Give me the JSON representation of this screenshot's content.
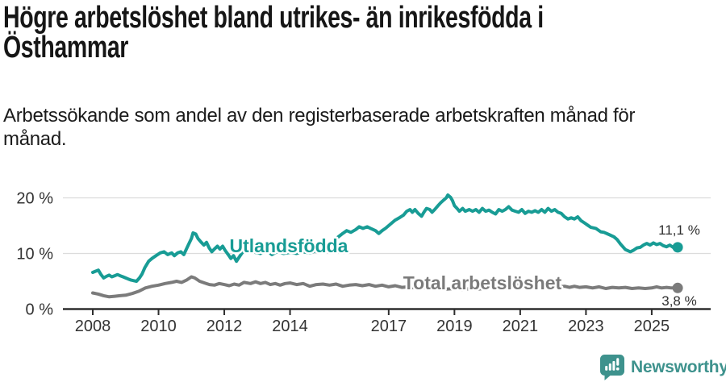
{
  "title": "Högre arbetslöshet bland utrikes- än inrikesfödda i Östhammar",
  "title_lines": [
    "Högre arbetslöshet bland utrikes- än inrikesfödda i",
    "Östhammar"
  ],
  "subtitle": "Arbetssökande som andel av den registerbaserade arbetskraften månad för månad.",
  "subtitle_lines": [
    "Arbetssökande som andel av den registerbaserade arbetskraften månad för",
    "månad."
  ],
  "branding": {
    "name": "Newsworthy",
    "color": "#3E928D"
  },
  "colors": {
    "grid": "#dcdcdc",
    "axis": "#2e2e2e",
    "tick_text": "#333333",
    "value_label_text": "#2f2f2f"
  },
  "chart_data": {
    "type": "line",
    "title": "Högre arbetslöshet bland utrikes- än inrikesfödda i Östhammar",
    "subtitle": "Arbetssökande som andel av den registerbaserade arbetskraften månad för månad.",
    "xlabel": "",
    "ylabel": "",
    "x_unit": "year (monthly values)",
    "xlim": [
      2007.3,
      2026.8
    ],
    "ylim": [
      0,
      22
    ],
    "grid": "horizontal",
    "legend": "inline-labels",
    "yticks": [
      {
        "value": 0,
        "label": "0 %"
      },
      {
        "value": 10,
        "label": "10 %"
      },
      {
        "value": 20,
        "label": "20 %"
      }
    ],
    "xticks": [
      {
        "value": 2008,
        "label": "2008"
      },
      {
        "value": 2010,
        "label": "2010"
      },
      {
        "value": 2012,
        "label": "2012"
      },
      {
        "value": 2014,
        "label": "2014"
      },
      {
        "value": 2017,
        "label": "2017"
      },
      {
        "value": 2019,
        "label": "2019"
      },
      {
        "value": 2021,
        "label": "2021"
      },
      {
        "value": 2023,
        "label": "2023"
      },
      {
        "value": 2025,
        "label": "2025"
      }
    ],
    "series": [
      {
        "name": "Utlandsfödda",
        "color": "#189C95",
        "end_label": "11,1 %",
        "end_value": 11.1,
        "points": [
          [
            2008.0,
            6.6
          ],
          [
            2008.08,
            6.8
          ],
          [
            2008.17,
            7.0
          ],
          [
            2008.25,
            6.2
          ],
          [
            2008.33,
            5.6
          ],
          [
            2008.42,
            5.9
          ],
          [
            2008.5,
            6.1
          ],
          [
            2008.58,
            5.8
          ],
          [
            2008.67,
            6.0
          ],
          [
            2008.75,
            6.2
          ],
          [
            2008.83,
            6.0
          ],
          [
            2008.92,
            5.8
          ],
          [
            2009.0,
            5.6
          ],
          [
            2009.08,
            5.4
          ],
          [
            2009.17,
            5.2
          ],
          [
            2009.25,
            5.1
          ],
          [
            2009.33,
            5.0
          ],
          [
            2009.42,
            5.6
          ],
          [
            2009.5,
            6.3
          ],
          [
            2009.58,
            7.4
          ],
          [
            2009.7,
            8.6
          ],
          [
            2009.8,
            9.1
          ],
          [
            2009.92,
            9.6
          ],
          [
            2010.05,
            10.1
          ],
          [
            2010.17,
            10.3
          ],
          [
            2010.28,
            9.8
          ],
          [
            2010.4,
            10.1
          ],
          [
            2010.48,
            9.6
          ],
          [
            2010.58,
            10.1
          ],
          [
            2010.68,
            10.3
          ],
          [
            2010.77,
            9.8
          ],
          [
            2010.88,
            11.2
          ],
          [
            2011.0,
            12.7
          ],
          [
            2011.05,
            13.7
          ],
          [
            2011.13,
            13.5
          ],
          [
            2011.2,
            12.7
          ],
          [
            2011.3,
            12.0
          ],
          [
            2011.38,
            11.5
          ],
          [
            2011.46,
            12.0
          ],
          [
            2011.54,
            11.0
          ],
          [
            2011.62,
            10.3
          ],
          [
            2011.7,
            10.8
          ],
          [
            2011.79,
            11.3
          ],
          [
            2011.87,
            10.8
          ],
          [
            2011.95,
            11.3
          ],
          [
            2012.03,
            10.5
          ],
          [
            2012.12,
            9.8
          ],
          [
            2012.2,
            9.1
          ],
          [
            2012.28,
            9.6
          ],
          [
            2012.37,
            8.6
          ],
          [
            2012.45,
            9.3
          ],
          [
            2012.54,
            10.1
          ],
          [
            2012.62,
            10.5
          ],
          [
            2012.7,
            10.8
          ],
          [
            2012.8,
            10.4
          ],
          [
            2012.93,
            10.2
          ],
          [
            2013.1,
            10.0
          ],
          [
            2013.3,
            10.5
          ],
          [
            2013.45,
            9.8
          ],
          [
            2013.6,
            10.3
          ],
          [
            2013.8,
            10.0
          ],
          [
            2014.0,
            10.2
          ],
          [
            2014.2,
            10.0
          ],
          [
            2014.4,
            10.3
          ],
          [
            2014.6,
            10.1
          ],
          [
            2014.8,
            10.5
          ],
          [
            2015.0,
            10.9
          ],
          [
            2015.15,
            11.4
          ],
          [
            2015.3,
            12.0
          ],
          [
            2015.45,
            12.9
          ],
          [
            2015.6,
            13.6
          ],
          [
            2015.72,
            14.1
          ],
          [
            2015.85,
            13.8
          ],
          [
            2016.0,
            14.3
          ],
          [
            2016.1,
            14.8
          ],
          [
            2016.22,
            14.5
          ],
          [
            2016.35,
            14.8
          ],
          [
            2016.45,
            14.5
          ],
          [
            2016.6,
            14.1
          ],
          [
            2016.7,
            13.6
          ],
          [
            2016.8,
            14.1
          ],
          [
            2016.9,
            14.5
          ],
          [
            2017.0,
            15.0
          ],
          [
            2017.1,
            15.5
          ],
          [
            2017.2,
            16.0
          ],
          [
            2017.35,
            16.5
          ],
          [
            2017.45,
            16.9
          ],
          [
            2017.55,
            17.6
          ],
          [
            2017.65,
            17.9
          ],
          [
            2017.72,
            17.4
          ],
          [
            2017.8,
            17.9
          ],
          [
            2017.9,
            17.2
          ],
          [
            2018.0,
            16.7
          ],
          [
            2018.07,
            17.4
          ],
          [
            2018.15,
            18.1
          ],
          [
            2018.25,
            17.9
          ],
          [
            2018.32,
            17.4
          ],
          [
            2018.4,
            17.9
          ],
          [
            2018.5,
            18.6
          ],
          [
            2018.58,
            19.1
          ],
          [
            2018.67,
            19.6
          ],
          [
            2018.75,
            20.0
          ],
          [
            2018.8,
            20.5
          ],
          [
            2018.88,
            20.1
          ],
          [
            2018.94,
            19.5
          ],
          [
            2019.0,
            18.6
          ],
          [
            2019.08,
            18.1
          ],
          [
            2019.15,
            17.6
          ],
          [
            2019.25,
            18.1
          ],
          [
            2019.33,
            17.6
          ],
          [
            2019.45,
            17.9
          ],
          [
            2019.55,
            17.6
          ],
          [
            2019.65,
            17.9
          ],
          [
            2019.75,
            17.4
          ],
          [
            2019.85,
            18.1
          ],
          [
            2019.95,
            17.6
          ],
          [
            2020.05,
            17.8
          ],
          [
            2020.15,
            17.4
          ],
          [
            2020.25,
            17.1
          ],
          [
            2020.35,
            17.9
          ],
          [
            2020.45,
            17.6
          ],
          [
            2020.55,
            17.9
          ],
          [
            2020.65,
            18.4
          ],
          [
            2020.75,
            17.8
          ],
          [
            2020.85,
            17.6
          ],
          [
            2020.95,
            17.4
          ],
          [
            2021.05,
            17.9
          ],
          [
            2021.15,
            17.2
          ],
          [
            2021.25,
            17.6
          ],
          [
            2021.35,
            17.4
          ],
          [
            2021.45,
            17.7
          ],
          [
            2021.55,
            17.4
          ],
          [
            2021.65,
            17.9
          ],
          [
            2021.75,
            17.4
          ],
          [
            2021.85,
            18.1
          ],
          [
            2021.95,
            17.6
          ],
          [
            2022.05,
            17.9
          ],
          [
            2022.15,
            17.4
          ],
          [
            2022.25,
            17.2
          ],
          [
            2022.35,
            16.6
          ],
          [
            2022.45,
            16.2
          ],
          [
            2022.55,
            16.4
          ],
          [
            2022.65,
            16.2
          ],
          [
            2022.75,
            16.6
          ],
          [
            2022.85,
            15.9
          ],
          [
            2022.95,
            15.5
          ],
          [
            2023.05,
            15.1
          ],
          [
            2023.15,
            14.7
          ],
          [
            2023.3,
            14.5
          ],
          [
            2023.45,
            13.9
          ],
          [
            2023.55,
            13.8
          ],
          [
            2023.7,
            13.4
          ],
          [
            2023.85,
            13.0
          ],
          [
            2023.95,
            12.5
          ],
          [
            2024.05,
            11.7
          ],
          [
            2024.2,
            10.7
          ],
          [
            2024.35,
            10.3
          ],
          [
            2024.45,
            10.6
          ],
          [
            2024.55,
            11.0
          ],
          [
            2024.65,
            11.1
          ],
          [
            2024.75,
            11.5
          ],
          [
            2024.85,
            11.8
          ],
          [
            2024.95,
            11.5
          ],
          [
            2025.05,
            11.9
          ],
          [
            2025.15,
            11.6
          ],
          [
            2025.25,
            11.8
          ],
          [
            2025.35,
            11.4
          ],
          [
            2025.45,
            11.2
          ],
          [
            2025.55,
            11.5
          ],
          [
            2025.65,
            11.1
          ],
          [
            2025.72,
            10.9
          ],
          [
            2025.79,
            11.1
          ]
        ]
      },
      {
        "name": "Total arbetslöshet",
        "color": "#7B7B7B",
        "end_label": "3,8 %",
        "end_value": 3.8,
        "points": [
          [
            2008.0,
            2.9
          ],
          [
            2008.17,
            2.7
          ],
          [
            2008.33,
            2.4
          ],
          [
            2008.5,
            2.2
          ],
          [
            2008.67,
            2.3
          ],
          [
            2008.83,
            2.4
          ],
          [
            2009.0,
            2.5
          ],
          [
            2009.2,
            2.8
          ],
          [
            2009.4,
            3.2
          ],
          [
            2009.6,
            3.8
          ],
          [
            2009.8,
            4.1
          ],
          [
            2010.0,
            4.3
          ],
          [
            2010.2,
            4.6
          ],
          [
            2010.4,
            4.8
          ],
          [
            2010.55,
            5.0
          ],
          [
            2010.7,
            4.8
          ],
          [
            2010.85,
            5.2
          ],
          [
            2011.0,
            5.8
          ],
          [
            2011.1,
            5.6
          ],
          [
            2011.25,
            5.0
          ],
          [
            2011.4,
            4.7
          ],
          [
            2011.55,
            4.4
          ],
          [
            2011.7,
            4.3
          ],
          [
            2011.85,
            4.6
          ],
          [
            2012.0,
            4.4
          ],
          [
            2012.15,
            4.2
          ],
          [
            2012.3,
            4.5
          ],
          [
            2012.45,
            4.3
          ],
          [
            2012.6,
            4.8
          ],
          [
            2012.8,
            4.6
          ],
          [
            2012.95,
            4.9
          ],
          [
            2013.1,
            4.6
          ],
          [
            2013.25,
            4.8
          ],
          [
            2013.4,
            4.4
          ],
          [
            2013.55,
            4.6
          ],
          [
            2013.7,
            4.3
          ],
          [
            2013.85,
            4.6
          ],
          [
            2014.0,
            4.7
          ],
          [
            2014.2,
            4.4
          ],
          [
            2014.4,
            4.6
          ],
          [
            2014.6,
            4.1
          ],
          [
            2014.8,
            4.4
          ],
          [
            2015.0,
            4.5
          ],
          [
            2015.2,
            4.3
          ],
          [
            2015.4,
            4.5
          ],
          [
            2015.6,
            4.1
          ],
          [
            2015.8,
            4.3
          ],
          [
            2016.0,
            4.4
          ],
          [
            2016.2,
            4.2
          ],
          [
            2016.4,
            4.4
          ],
          [
            2016.6,
            4.1
          ],
          [
            2016.8,
            4.3
          ],
          [
            2017.0,
            4.0
          ],
          [
            2017.2,
            4.2
          ],
          [
            2017.4,
            3.9
          ],
          [
            2017.6,
            4.0
          ],
          [
            2017.8,
            3.8
          ],
          [
            2018.0,
            3.9
          ],
          [
            2018.25,
            3.7
          ],
          [
            2018.5,
            3.8
          ],
          [
            2018.75,
            3.6
          ],
          [
            2019.0,
            3.7
          ],
          [
            2019.25,
            3.5
          ],
          [
            2019.5,
            3.7
          ],
          [
            2019.75,
            3.6
          ],
          [
            2020.0,
            3.8
          ],
          [
            2020.2,
            4.4
          ],
          [
            2020.4,
            4.6
          ],
          [
            2020.6,
            4.5
          ],
          [
            2020.8,
            4.4
          ],
          [
            2021.0,
            4.3
          ],
          [
            2021.25,
            4.2
          ],
          [
            2021.5,
            4.1
          ],
          [
            2021.75,
            4.2
          ],
          [
            2022.0,
            4.1
          ],
          [
            2022.2,
            4.0
          ],
          [
            2022.35,
            4.1
          ],
          [
            2022.5,
            3.9
          ],
          [
            2022.65,
            4.1
          ],
          [
            2022.8,
            3.9
          ],
          [
            2023.0,
            4.0
          ],
          [
            2023.2,
            3.8
          ],
          [
            2023.4,
            4.0
          ],
          [
            2023.6,
            3.7
          ],
          [
            2023.8,
            3.9
          ],
          [
            2024.0,
            3.8
          ],
          [
            2024.2,
            3.9
          ],
          [
            2024.4,
            3.7
          ],
          [
            2024.6,
            3.8
          ],
          [
            2024.8,
            3.7
          ],
          [
            2025.0,
            3.8
          ],
          [
            2025.15,
            4.0
          ],
          [
            2025.3,
            3.8
          ],
          [
            2025.45,
            3.9
          ],
          [
            2025.6,
            3.8
          ],
          [
            2025.79,
            3.8
          ]
        ]
      }
    ]
  }
}
